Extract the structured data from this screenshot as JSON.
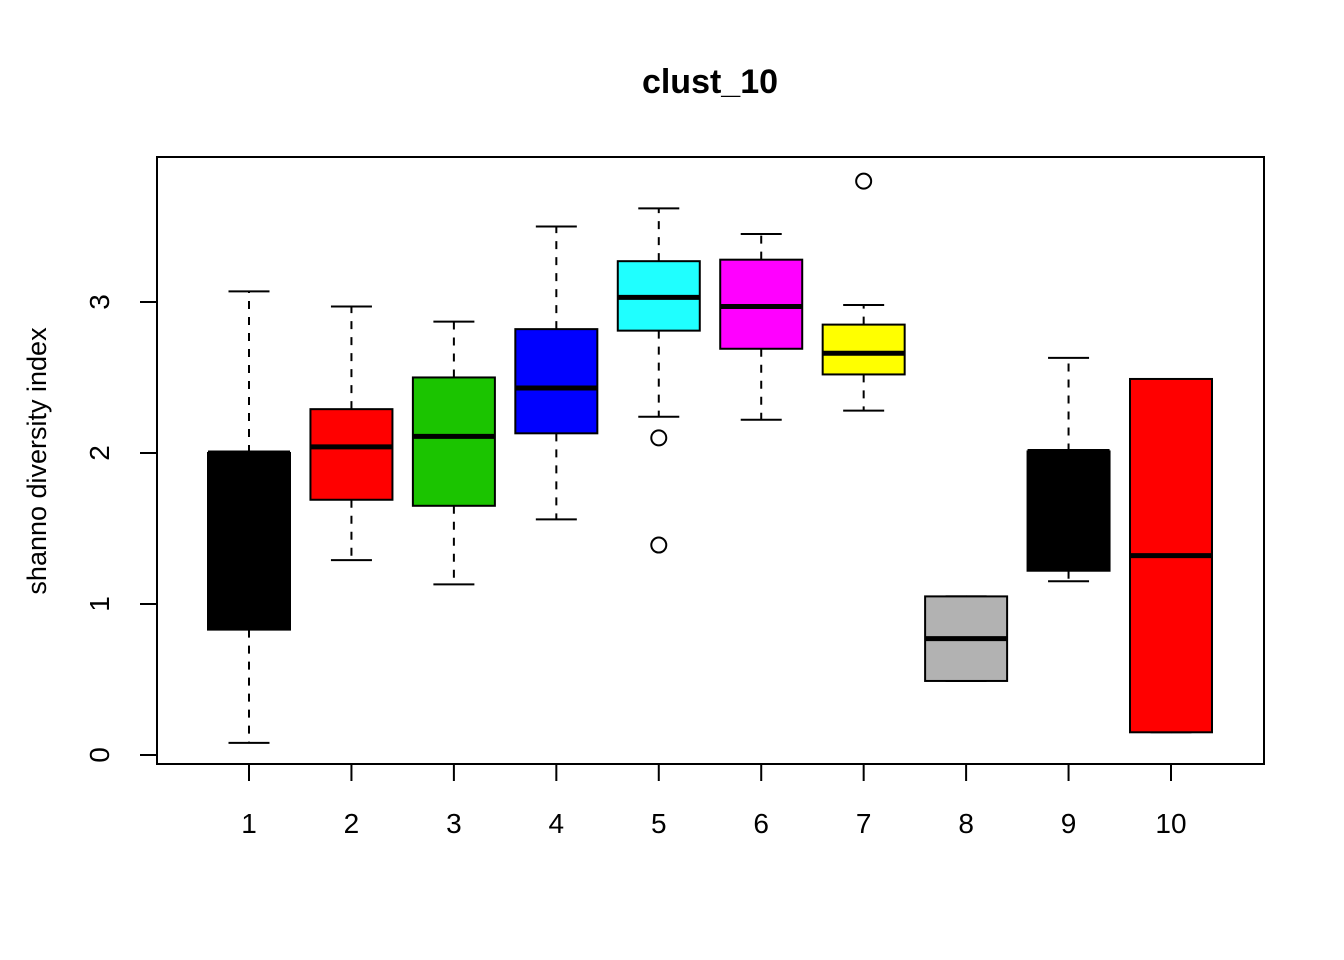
{
  "chart_data": {
    "type": "boxplot",
    "title": "clust_10",
    "xlabel": "",
    "ylabel": "shanno diversity index",
    "ylim": [
      -0.06,
      3.96
    ],
    "y_ticks": [
      "0",
      "1",
      "2",
      "3"
    ],
    "categories": [
      "1",
      "2",
      "3",
      "4",
      "5",
      "6",
      "7",
      "8",
      "9",
      "10"
    ],
    "boxes": [
      {
        "label": "1",
        "color": "#000000",
        "min": 0.08,
        "q1": 0.83,
        "median": 2.0,
        "q3": 2.0,
        "max": 3.07,
        "outliers": []
      },
      {
        "label": "2",
        "color": "#FF0000",
        "min": 1.29,
        "q1": 1.69,
        "median": 2.04,
        "q3": 2.29,
        "max": 2.97,
        "outliers": []
      },
      {
        "label": "3",
        "color": "#1BC400",
        "min": 1.13,
        "q1": 1.65,
        "median": 2.11,
        "q3": 2.5,
        "max": 2.87,
        "outliers": []
      },
      {
        "label": "4",
        "color": "#0000FF",
        "min": 1.56,
        "q1": 2.13,
        "median": 2.43,
        "q3": 2.82,
        "max": 3.5,
        "outliers": []
      },
      {
        "label": "5",
        "color": "#1FFFFF",
        "min": 2.24,
        "q1": 2.81,
        "median": 3.03,
        "q3": 3.27,
        "max": 3.62,
        "outliers": [
          2.1,
          1.39
        ]
      },
      {
        "label": "6",
        "color": "#FF00FF",
        "min": 2.22,
        "q1": 2.69,
        "median": 2.97,
        "q3": 3.28,
        "max": 3.45,
        "outliers": []
      },
      {
        "label": "7",
        "color": "#FFFF00",
        "min": 2.28,
        "q1": 2.52,
        "median": 2.66,
        "q3": 2.85,
        "max": 2.98,
        "outliers": [
          3.8
        ]
      },
      {
        "label": "8",
        "color": "#B2B2B2",
        "min": 0.49,
        "q1": 0.49,
        "median": 0.77,
        "q3": 1.05,
        "max": 1.05,
        "outliers": []
      },
      {
        "label": "9",
        "color": "#000000",
        "min": 1.15,
        "q1": 1.22,
        "median": 2.01,
        "q3": 2.01,
        "max": 2.63,
        "outliers": []
      },
      {
        "label": "10",
        "color": "#FF0000",
        "min": 0.15,
        "q1": 0.15,
        "median": 1.32,
        "q3": 2.49,
        "max": 2.49,
        "outliers": []
      }
    ],
    "grid": false,
    "legend": "none"
  }
}
